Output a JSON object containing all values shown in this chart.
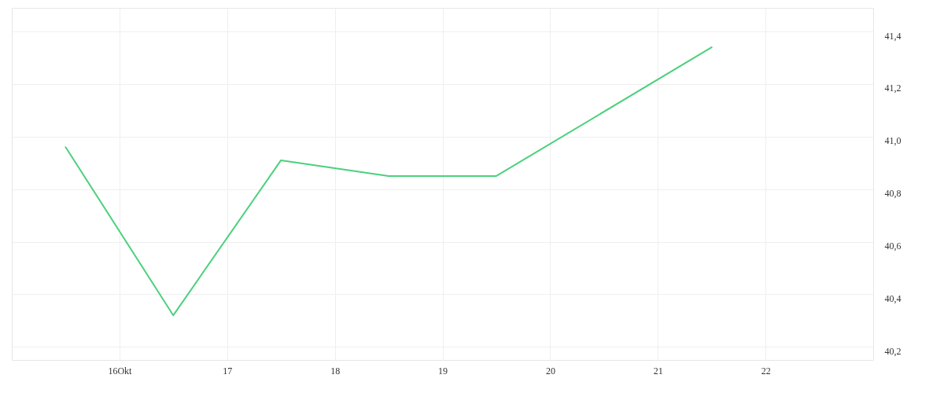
{
  "chart_data": {
    "type": "line",
    "x": [
      "--10-15T12:00",
      "--10-16T12:00",
      "--10-17T12:00",
      "--10-18T12:00",
      "--10-19T12:00",
      "--10-21T12:00"
    ],
    "series": [
      {
        "color": "#4cd07d",
        "values": [
          40.96,
          40.32,
          40.91,
          40.85,
          40.85,
          41.34
        ]
      }
    ],
    "xlim": [
      "--10-15",
      "--10-23"
    ],
    "xticks": [
      {
        "value": "--10-16",
        "label": "16Okt"
      },
      {
        "value": "--10-17",
        "label": "17"
      },
      {
        "value": "--10-18",
        "label": "18"
      },
      {
        "value": "--10-19",
        "label": "19"
      },
      {
        "value": "--10-20",
        "label": "20"
      },
      {
        "value": "--10-21",
        "label": "21"
      },
      {
        "value": "--10-22",
        "label": "22"
      }
    ],
    "ylim": [
      40.15,
      41.49
    ],
    "yticks": [
      {
        "value": 40.2,
        "label": "40,2"
      },
      {
        "value": 40.4,
        "label": "40,4"
      },
      {
        "value": 40.6,
        "label": "40,6"
      },
      {
        "value": 40.8,
        "label": "40,8"
      },
      {
        "value": 41.0,
        "label": "41,0"
      },
      {
        "value": 41.2,
        "label": "41,2"
      },
      {
        "value": 41.4,
        "label": "41,4"
      }
    ],
    "grid": true,
    "line_style": "solid",
    "marker": "none"
  }
}
